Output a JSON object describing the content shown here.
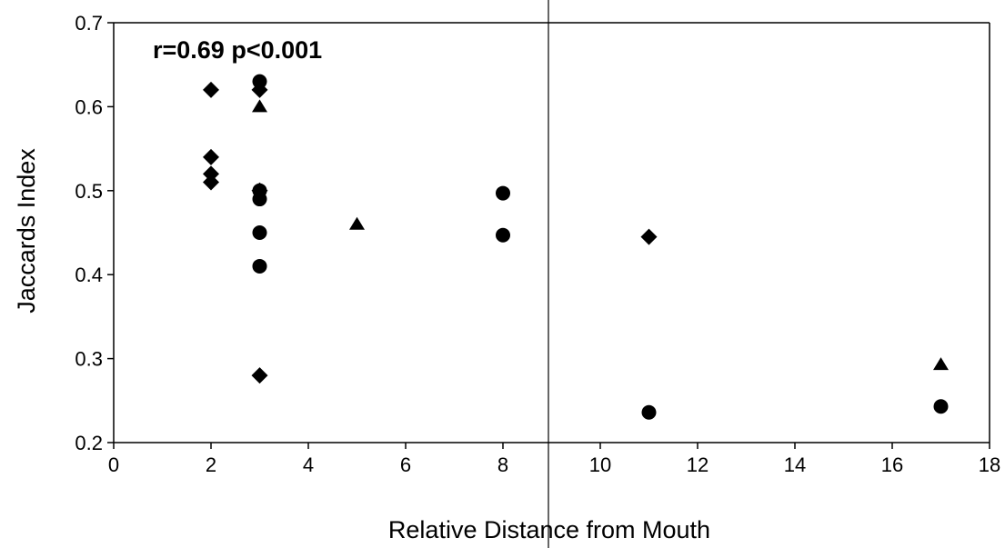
{
  "chart_data": {
    "type": "scatter",
    "title": "",
    "xlabel": "Relative Distance from Mouth",
    "ylabel": "Jaccards Index",
    "xlim": [
      0,
      18
    ],
    "ylim": [
      0.2,
      0.7
    ],
    "x_ticks": [
      "0",
      "2",
      "4",
      "6",
      "8",
      "10",
      "12",
      "14",
      "16",
      "18"
    ],
    "y_ticks": [
      "0.2",
      "0.3",
      "0.4",
      "0.5",
      "0.6",
      "0.7"
    ],
    "grid": false,
    "legend": "none",
    "annotation": "r=0.69 p<0.001",
    "series": [
      {
        "marker": "diamond",
        "points": [
          {
            "x": 2,
            "y": 0.62
          },
          {
            "x": 2,
            "y": 0.54
          },
          {
            "x": 2,
            "y": 0.52
          },
          {
            "x": 2,
            "y": 0.51
          },
          {
            "x": 3,
            "y": 0.62
          },
          {
            "x": 3,
            "y": 0.5
          },
          {
            "x": 3,
            "y": 0.28
          },
          {
            "x": 11,
            "y": 0.445
          }
        ]
      },
      {
        "marker": "circle",
        "points": [
          {
            "x": 3,
            "y": 0.63
          },
          {
            "x": 3,
            "y": 0.5
          },
          {
            "x": 3,
            "y": 0.49
          },
          {
            "x": 3,
            "y": 0.45
          },
          {
            "x": 3,
            "y": 0.41
          },
          {
            "x": 8,
            "y": 0.497
          },
          {
            "x": 8,
            "y": 0.447
          },
          {
            "x": 11,
            "y": 0.236
          },
          {
            "x": 17,
            "y": 0.243
          }
        ]
      },
      {
        "marker": "triangle",
        "points": [
          {
            "x": 3,
            "y": 0.6
          },
          {
            "x": 5,
            "y": 0.46
          },
          {
            "x": 17,
            "y": 0.293
          }
        ]
      }
    ]
  }
}
